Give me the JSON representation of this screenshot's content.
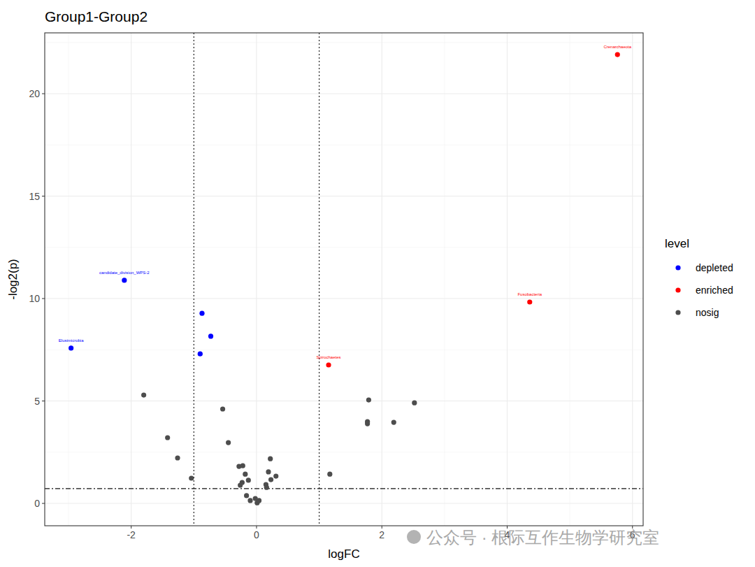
{
  "chart_data": {
    "type": "scatter",
    "title": "Group1-Group2",
    "x_label": "logFC",
    "y_label": "-log2(p)",
    "legend_title": "level",
    "watermark": "公众号 · 根际互作生物学研究室",
    "xlim": [
      -3.38,
      6.17
    ],
    "ylim": [
      -1.09,
      22.97
    ],
    "xticks": [
      -2,
      0,
      2,
      4,
      6
    ],
    "yticks": [
      0,
      5,
      10,
      15,
      20
    ],
    "grid": true,
    "legend": "right",
    "thresholds": {
      "x": [
        -1,
        1
      ],
      "y": 0.72
    },
    "series": [
      {
        "name": "depleted",
        "color": "#0000ff",
        "marker": "circle",
        "x": [
          -2.96,
          -2.11,
          -0.87,
          -0.73,
          -0.9
        ],
        "values": [
          7.58,
          10.89,
          9.28,
          8.16,
          7.3
        ],
        "labels": [
          "Elusimicrobia",
          "candidate_division_WPS-2",
          null,
          null,
          null
        ]
      },
      {
        "name": "enriched",
        "color": "#ff0000",
        "marker": "circle",
        "x": [
          5.76,
          4.36,
          1.15
        ],
        "values": [
          21.91,
          9.83,
          6.76
        ],
        "labels": [
          "Crenarchaeota",
          "Fusobacteria",
          "Spirochaetes"
        ]
      },
      {
        "name": "nosig",
        "color": "#4d4d4d",
        "marker": "circle",
        "x": [
          -1.8,
          -1.42,
          -1.26,
          -1.04,
          -0.54,
          -0.45,
          -0.28,
          -0.22,
          -0.23,
          -0.26,
          -0.18,
          -0.13,
          -0.16,
          -0.1,
          -0.02,
          0.01,
          0.04,
          0.15,
          0.16,
          0.19,
          0.22,
          0.23,
          0.31,
          1.17,
          1.79,
          1.77,
          1.77,
          2.19,
          2.52
        ],
        "values": [
          5.29,
          3.21,
          2.22,
          1.23,
          4.61,
          2.97,
          1.81,
          1.84,
          1.02,
          0.89,
          1.43,
          1.13,
          0.38,
          0.14,
          0.24,
          0.03,
          0.14,
          0.92,
          0.78,
          1.54,
          2.18,
          1.16,
          1.33,
          1.43,
          5.05,
          3.99,
          3.89,
          3.96,
          4.91
        ]
      }
    ]
  }
}
